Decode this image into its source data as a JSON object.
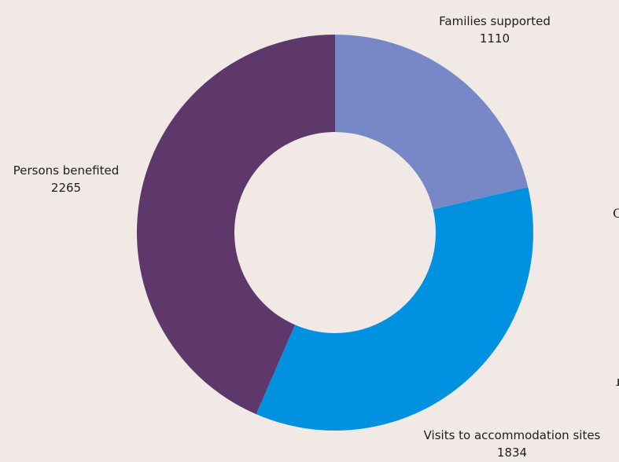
{
  "chart_data": {
    "type": "pie",
    "donut": true,
    "start_angle_deg": 0,
    "direction": "clockwise",
    "slices": [
      {
        "label": "Families supported",
        "value": 1110,
        "value_text": "1110",
        "color": "#7888c6"
      },
      {
        "label": "Visits to accommodation sites",
        "value": 1834,
        "value_text": "1834",
        "color": "#0091e0"
      },
      {
        "label": "Persons benefited",
        "value": 2265,
        "value_text": "2265",
        "color": "#5e376b"
      }
    ],
    "background": "#f0e9e6",
    "legend": "none"
  },
  "edge_text": {
    "right_upper": "C",
    "right_lower": "1"
  }
}
